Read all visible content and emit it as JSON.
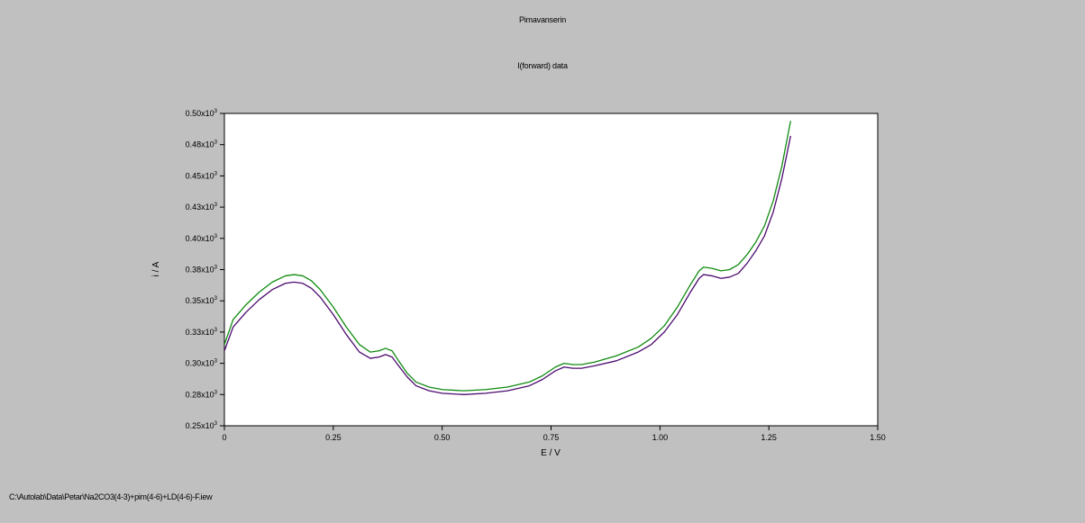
{
  "chart_data": {
    "type": "line",
    "title": "Pimavanserin",
    "subtitle": "I(forward) data",
    "xlabel": "E / V",
    "ylabel": "i / A",
    "xlim": [
      0,
      1.5
    ],
    "ylim": [
      0.25,
      0.5
    ],
    "x_ticks": [
      {
        "value": 0,
        "label": "0"
      },
      {
        "value": 0.25,
        "label": "0.25"
      },
      {
        "value": 0.5,
        "label": "0.50"
      },
      {
        "value": 0.75,
        "label": "0.75"
      },
      {
        "value": 1.0,
        "label": "1.00"
      },
      {
        "value": 1.25,
        "label": "1.25"
      },
      {
        "value": 1.5,
        "label": "1.50"
      }
    ],
    "y_ticks": [
      {
        "value": 0.25,
        "mantissa": "0.25x10",
        "exp": "3"
      },
      {
        "value": 0.275,
        "mantissa": "0.28x10",
        "exp": "3"
      },
      {
        "value": 0.3,
        "mantissa": "0.30x10",
        "exp": "3"
      },
      {
        "value": 0.325,
        "mantissa": "0.33x10",
        "exp": "3"
      },
      {
        "value": 0.35,
        "mantissa": "0.35x10",
        "exp": "3"
      },
      {
        "value": 0.375,
        "mantissa": "0.38x10",
        "exp": "3"
      },
      {
        "value": 0.4,
        "mantissa": "0.40x10",
        "exp": "3"
      },
      {
        "value": 0.425,
        "mantissa": "0.43x10",
        "exp": "3"
      },
      {
        "value": 0.45,
        "mantissa": "0.45x10",
        "exp": "3"
      },
      {
        "value": 0.475,
        "mantissa": "0.48x10",
        "exp": "3"
      },
      {
        "value": 0.5,
        "mantissa": "0.50x10",
        "exp": "3"
      }
    ],
    "grid": false,
    "series": [
      {
        "color": "#108a10",
        "points": [
          [
            0.0,
            0.315
          ],
          [
            0.02,
            0.335
          ],
          [
            0.05,
            0.347
          ],
          [
            0.08,
            0.357
          ],
          [
            0.11,
            0.365
          ],
          [
            0.14,
            0.37
          ],
          [
            0.16,
            0.371
          ],
          [
            0.18,
            0.37
          ],
          [
            0.2,
            0.366
          ],
          [
            0.22,
            0.359
          ],
          [
            0.25,
            0.345
          ],
          [
            0.28,
            0.329
          ],
          [
            0.31,
            0.315
          ],
          [
            0.335,
            0.309
          ],
          [
            0.355,
            0.31
          ],
          [
            0.37,
            0.312
          ],
          [
            0.385,
            0.31
          ],
          [
            0.4,
            0.302
          ],
          [
            0.42,
            0.292
          ],
          [
            0.44,
            0.285
          ],
          [
            0.47,
            0.281
          ],
          [
            0.5,
            0.279
          ],
          [
            0.55,
            0.278
          ],
          [
            0.6,
            0.279
          ],
          [
            0.65,
            0.281
          ],
          [
            0.7,
            0.285
          ],
          [
            0.73,
            0.29
          ],
          [
            0.76,
            0.297
          ],
          [
            0.78,
            0.3
          ],
          [
            0.8,
            0.299
          ],
          [
            0.82,
            0.299
          ],
          [
            0.85,
            0.301
          ],
          [
            0.9,
            0.306
          ],
          [
            0.95,
            0.313
          ],
          [
            0.98,
            0.32
          ],
          [
            1.01,
            0.33
          ],
          [
            1.04,
            0.345
          ],
          [
            1.07,
            0.363
          ],
          [
            1.09,
            0.374
          ],
          [
            1.1,
            0.377
          ],
          [
            1.12,
            0.376
          ],
          [
            1.14,
            0.374
          ],
          [
            1.16,
            0.375
          ],
          [
            1.18,
            0.379
          ],
          [
            1.2,
            0.387
          ],
          [
            1.22,
            0.397
          ],
          [
            1.24,
            0.41
          ],
          [
            1.26,
            0.43
          ],
          [
            1.28,
            0.458
          ],
          [
            1.3,
            0.494
          ]
        ]
      },
      {
        "color": "#4b0a6e",
        "points": [
          [
            0.0,
            0.31
          ],
          [
            0.02,
            0.329
          ],
          [
            0.05,
            0.341
          ],
          [
            0.08,
            0.351
          ],
          [
            0.11,
            0.359
          ],
          [
            0.14,
            0.364
          ],
          [
            0.16,
            0.365
          ],
          [
            0.18,
            0.364
          ],
          [
            0.2,
            0.36
          ],
          [
            0.22,
            0.353
          ],
          [
            0.25,
            0.339
          ],
          [
            0.28,
            0.323
          ],
          [
            0.31,
            0.309
          ],
          [
            0.335,
            0.304
          ],
          [
            0.355,
            0.305
          ],
          [
            0.37,
            0.307
          ],
          [
            0.385,
            0.305
          ],
          [
            0.4,
            0.298
          ],
          [
            0.42,
            0.289
          ],
          [
            0.44,
            0.282
          ],
          [
            0.47,
            0.278
          ],
          [
            0.5,
            0.276
          ],
          [
            0.55,
            0.275
          ],
          [
            0.6,
            0.276
          ],
          [
            0.65,
            0.278
          ],
          [
            0.7,
            0.282
          ],
          [
            0.73,
            0.287
          ],
          [
            0.76,
            0.294
          ],
          [
            0.78,
            0.297
          ],
          [
            0.8,
            0.296
          ],
          [
            0.82,
            0.296
          ],
          [
            0.85,
            0.298
          ],
          [
            0.9,
            0.302
          ],
          [
            0.95,
            0.309
          ],
          [
            0.98,
            0.315
          ],
          [
            1.01,
            0.325
          ],
          [
            1.04,
            0.339
          ],
          [
            1.07,
            0.357
          ],
          [
            1.09,
            0.368
          ],
          [
            1.1,
            0.371
          ],
          [
            1.12,
            0.37
          ],
          [
            1.14,
            0.368
          ],
          [
            1.16,
            0.369
          ],
          [
            1.18,
            0.372
          ],
          [
            1.2,
            0.38
          ],
          [
            1.22,
            0.39
          ],
          [
            1.24,
            0.402
          ],
          [
            1.26,
            0.421
          ],
          [
            1.28,
            0.448
          ],
          [
            1.3,
            0.482
          ]
        ]
      }
    ]
  },
  "footer": {
    "file_path": "C:\\Autolab\\Data\\Petar\\Na2CO3(4-3)+pim(4-6)+LD(4-6)-F.iew"
  }
}
